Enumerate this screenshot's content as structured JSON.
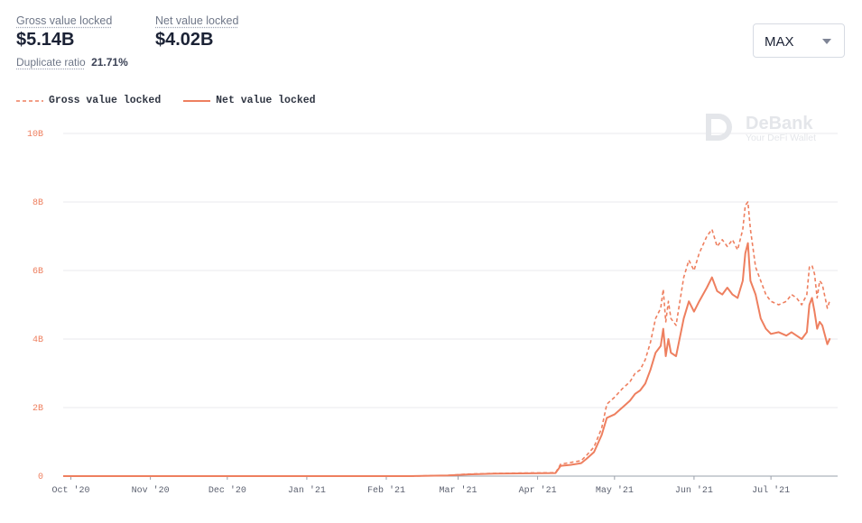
{
  "stats": {
    "gross": {
      "label": "Gross value locked",
      "value": "$5.14B"
    },
    "net": {
      "label": "Net value locked",
      "value": "$4.02B"
    },
    "duplicate": {
      "label": "Duplicate ratio",
      "value": "21.71%"
    }
  },
  "range_select": {
    "value": "MAX"
  },
  "watermark": {
    "name": "DeBank",
    "tagline": "Your DeFi Wallet"
  },
  "colors": {
    "accent": "#ee7f5f",
    "axis_text": "#ee7f5f",
    "grid": "#e8e9ec",
    "month_text": "#5c6170"
  },
  "chart_data": {
    "type": "line",
    "legend_position": "top-left",
    "grid": true,
    "x_ticks": [
      "Oct '20",
      "Nov '20",
      "Dec '20",
      "Jan '21",
      "Feb '21",
      "Mar '21",
      "Apr '21",
      "May '21",
      "Jun '21",
      "Jul '21"
    ],
    "y_ticks": [
      "0",
      "2B",
      "4B",
      "6B",
      "8B",
      "10B"
    ],
    "ylim": [
      0,
      10
    ],
    "xlim": [
      "2020-09-28",
      "2021-07-27"
    ],
    "series": [
      {
        "name": "Gross value locked",
        "style": "dashed",
        "points": [
          [
            "2020-09-28",
            0
          ],
          [
            "2021-01-01",
            0
          ],
          [
            "2021-02-10",
            0
          ],
          [
            "2021-02-25",
            0.02
          ],
          [
            "2021-03-05",
            0.06
          ],
          [
            "2021-03-15",
            0.08
          ],
          [
            "2021-03-25",
            0.09
          ],
          [
            "2021-04-08",
            0.1
          ],
          [
            "2021-04-10",
            0.35
          ],
          [
            "2021-04-14",
            0.4
          ],
          [
            "2021-04-18",
            0.45
          ],
          [
            "2021-04-20",
            0.6
          ],
          [
            "2021-04-23",
            0.85
          ],
          [
            "2021-04-26",
            1.4
          ],
          [
            "2021-04-28",
            2.1
          ],
          [
            "2021-05-01",
            2.3
          ],
          [
            "2021-05-04",
            2.55
          ],
          [
            "2021-05-07",
            2.75
          ],
          [
            "2021-05-09",
            3.0
          ],
          [
            "2021-05-11",
            3.1
          ],
          [
            "2021-05-13",
            3.4
          ],
          [
            "2021-05-15",
            3.9
          ],
          [
            "2021-05-17",
            4.6
          ],
          [
            "2021-05-19",
            4.9
          ],
          [
            "2021-05-20",
            5.45
          ],
          [
            "2021-05-21",
            4.5
          ],
          [
            "2021-05-22",
            5.1
          ],
          [
            "2021-05-23",
            4.6
          ],
          [
            "2021-05-25",
            4.4
          ],
          [
            "2021-05-28",
            5.8
          ],
          [
            "2021-05-30",
            6.3
          ],
          [
            "2021-06-01",
            6.0
          ],
          [
            "2021-06-03",
            6.5
          ],
          [
            "2021-06-06",
            7.0
          ],
          [
            "2021-06-08",
            7.2
          ],
          [
            "2021-06-10",
            6.7
          ],
          [
            "2021-06-12",
            6.9
          ],
          [
            "2021-06-14",
            6.7
          ],
          [
            "2021-06-16",
            6.9
          ],
          [
            "2021-06-18",
            6.6
          ],
          [
            "2021-06-20",
            7.2
          ],
          [
            "2021-06-21",
            7.9
          ],
          [
            "2021-06-22",
            8.0
          ],
          [
            "2021-06-23",
            7.2
          ],
          [
            "2021-06-25",
            6.1
          ],
          [
            "2021-06-27",
            5.7
          ],
          [
            "2021-06-29",
            5.3
          ],
          [
            "2021-07-01",
            5.1
          ],
          [
            "2021-07-04",
            5.0
          ],
          [
            "2021-07-07",
            5.1
          ],
          [
            "2021-07-09",
            5.3
          ],
          [
            "2021-07-11",
            5.2
          ],
          [
            "2021-07-13",
            5.0
          ],
          [
            "2021-07-15",
            5.3
          ],
          [
            "2021-07-16",
            6.1
          ],
          [
            "2021-07-17",
            6.15
          ],
          [
            "2021-07-18",
            5.9
          ],
          [
            "2021-07-19",
            5.2
          ],
          [
            "2021-07-20",
            5.7
          ],
          [
            "2021-07-21",
            5.6
          ],
          [
            "2021-07-23",
            4.9
          ],
          [
            "2021-07-24",
            5.14
          ]
        ]
      },
      {
        "name": "Net value locked",
        "style": "solid",
        "points": [
          [
            "2020-09-28",
            0
          ],
          [
            "2021-01-01",
            0
          ],
          [
            "2021-02-10",
            0
          ],
          [
            "2021-02-25",
            0.02
          ],
          [
            "2021-03-05",
            0.05
          ],
          [
            "2021-03-15",
            0.07
          ],
          [
            "2021-03-25",
            0.08
          ],
          [
            "2021-04-08",
            0.09
          ],
          [
            "2021-04-10",
            0.3
          ],
          [
            "2021-04-14",
            0.33
          ],
          [
            "2021-04-18",
            0.38
          ],
          [
            "2021-04-20",
            0.5
          ],
          [
            "2021-04-23",
            0.7
          ],
          [
            "2021-04-26",
            1.2
          ],
          [
            "2021-04-28",
            1.7
          ],
          [
            "2021-05-01",
            1.8
          ],
          [
            "2021-05-04",
            2.0
          ],
          [
            "2021-05-07",
            2.2
          ],
          [
            "2021-05-09",
            2.4
          ],
          [
            "2021-05-11",
            2.5
          ],
          [
            "2021-05-13",
            2.7
          ],
          [
            "2021-05-15",
            3.1
          ],
          [
            "2021-05-17",
            3.6
          ],
          [
            "2021-05-19",
            3.8
          ],
          [
            "2021-05-20",
            4.3
          ],
          [
            "2021-05-21",
            3.5
          ],
          [
            "2021-05-22",
            4.0
          ],
          [
            "2021-05-23",
            3.6
          ],
          [
            "2021-05-25",
            3.5
          ],
          [
            "2021-05-28",
            4.6
          ],
          [
            "2021-05-30",
            5.1
          ],
          [
            "2021-06-01",
            4.8
          ],
          [
            "2021-06-03",
            5.1
          ],
          [
            "2021-06-06",
            5.5
          ],
          [
            "2021-06-08",
            5.8
          ],
          [
            "2021-06-10",
            5.4
          ],
          [
            "2021-06-12",
            5.3
          ],
          [
            "2021-06-14",
            5.5
          ],
          [
            "2021-06-16",
            5.3
          ],
          [
            "2021-06-18",
            5.2
          ],
          [
            "2021-06-20",
            5.7
          ],
          [
            "2021-06-21",
            6.5
          ],
          [
            "2021-06-22",
            6.8
          ],
          [
            "2021-06-23",
            5.7
          ],
          [
            "2021-06-25",
            5.3
          ],
          [
            "2021-06-27",
            4.6
          ],
          [
            "2021-06-29",
            4.3
          ],
          [
            "2021-07-01",
            4.15
          ],
          [
            "2021-07-04",
            4.2
          ],
          [
            "2021-07-07",
            4.1
          ],
          [
            "2021-07-09",
            4.2
          ],
          [
            "2021-07-11",
            4.1
          ],
          [
            "2021-07-13",
            4.0
          ],
          [
            "2021-07-15",
            4.2
          ],
          [
            "2021-07-16",
            5.0
          ],
          [
            "2021-07-17",
            5.2
          ],
          [
            "2021-07-18",
            4.8
          ],
          [
            "2021-07-19",
            4.3
          ],
          [
            "2021-07-20",
            4.5
          ],
          [
            "2021-07-21",
            4.4
          ],
          [
            "2021-07-23",
            3.85
          ],
          [
            "2021-07-24",
            4.02
          ]
        ]
      }
    ]
  }
}
